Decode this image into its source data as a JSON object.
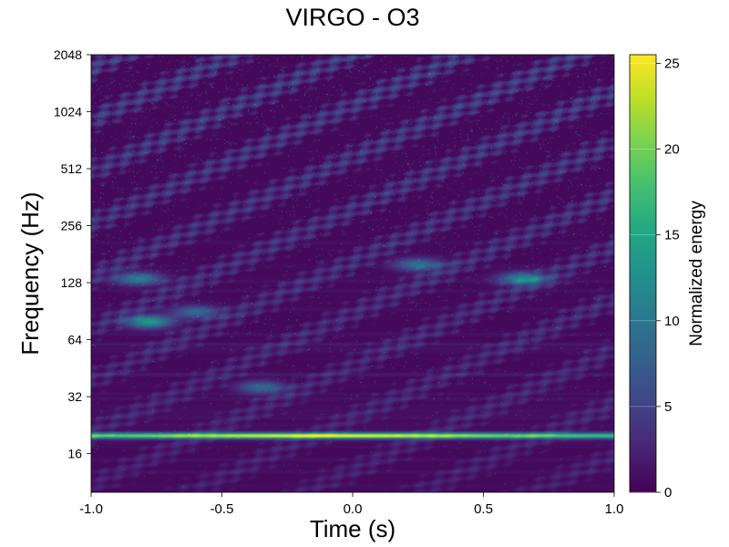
{
  "chart_data": {
    "type": "heatmap",
    "title": "VIRGO - O3",
    "xlabel": "Time (s)",
    "ylabel": "Frequency (Hz)",
    "xlim": [
      -1.0,
      1.0
    ],
    "ylim": [
      10,
      2048
    ],
    "y_scale": "log2",
    "x_ticks": [
      "-1.0",
      "-0.5",
      "0.0",
      "0.5",
      "1.0"
    ],
    "y_ticks": [
      16,
      32,
      64,
      128,
      256,
      512,
      1024,
      2048
    ],
    "colorbar": {
      "label": "Normalized energy",
      "colormap": "viridis",
      "range": [
        0,
        25.5
      ],
      "ticks": [
        0,
        5,
        10,
        15,
        20,
        25
      ]
    },
    "features": [
      {
        "description": "bright horizontal band",
        "freq_hz": 20,
        "t_start": -1.0,
        "t_end": 1.0,
        "peak_energy": 25,
        "peak_time": -0.1
      },
      {
        "description": "blob",
        "freq_hz": 80,
        "time": -0.78,
        "energy": 13
      },
      {
        "description": "blob",
        "freq_hz": 135,
        "time": -0.82,
        "energy": 10
      },
      {
        "description": "blob",
        "freq_hz": 135,
        "time": 0.65,
        "energy": 11
      },
      {
        "description": "blob",
        "freq_hz": 160,
        "time": 0.25,
        "energy": 9
      },
      {
        "description": "blob",
        "freq_hz": 90,
        "time": -0.6,
        "energy": 8
      },
      {
        "description": "blob",
        "freq_hz": 36,
        "time": -0.35,
        "energy": 8
      }
    ]
  }
}
